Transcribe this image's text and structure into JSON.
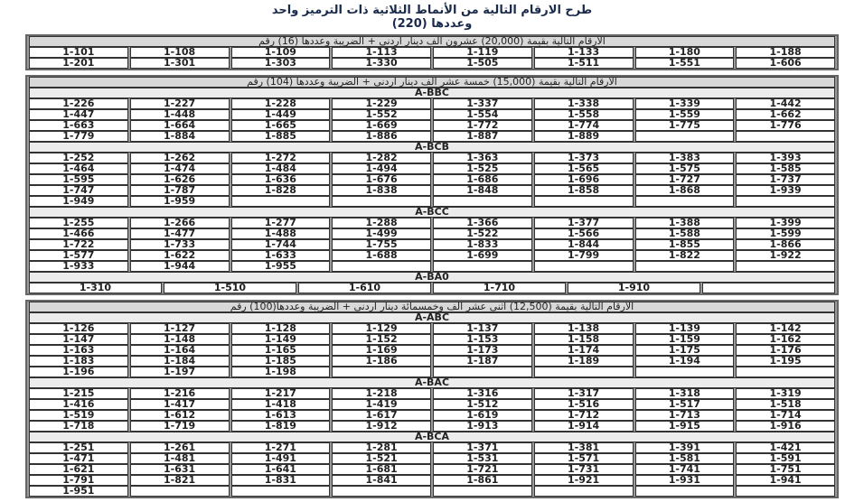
{
  "title": {
    "line1": "طرح الارقام التالية من الأنماط الثلاثية ذات الترميز واحد",
    "line2": "وعددها (220)"
  },
  "tables": [
    {
      "header": "الارقام التالية بقيمة  (20,000) عشرون الف دينار اردني + الضريبة وعددها (16) رقم",
      "sections": [
        {
          "label": "",
          "rows": [
            [
              "1-101",
              "1-108",
              "1-109",
              "1-113",
              "1-119",
              "1-133",
              "1-180",
              "1-188"
            ],
            [
              "1-201",
              "1-301",
              "1-303",
              "1-330",
              "1-505",
              "1-511",
              "1-551",
              "1-606"
            ]
          ]
        }
      ]
    },
    {
      "header": "الارقام التالية بقيمة  (15,000) خمسة عشر الف دينار اردني + الضريبة وعددها (104) رقم",
      "sections": [
        {
          "label": "A-BBC",
          "rows": [
            [
              "1-226",
              "1-227",
              "1-228",
              "1-229",
              "1-337",
              "1-338",
              "1-339",
              "1-442"
            ],
            [
              "1-447",
              "1-448",
              "1-449",
              "1-552",
              "1-554",
              "1-558",
              "1-559",
              "1-662"
            ],
            [
              "1-663",
              "1-664",
              "1-665",
              "1-669",
              "1-772",
              "1-774",
              "1-775",
              "1-776"
            ],
            [
              "1-779",
              "1-884",
              "1-885",
              "1-886",
              "1-887",
              "1-889",
              "",
              ""
            ]
          ]
        },
        {
          "label": "A-BCB",
          "rows": [
            [
              "1-252",
              "1-262",
              "1-272",
              "1-282",
              "1-363",
              "1-373",
              "1-383",
              "1-393"
            ],
            [
              "1-464",
              "1-474",
              "1-484",
              "1-494",
              "1-525",
              "1-565",
              "1-575",
              "1-585"
            ],
            [
              "1-595",
              "1-626",
              "1-636",
              "1-676",
              "1-686",
              "1-696",
              "1-727",
              "1-737"
            ],
            [
              "1-747",
              "1-787",
              "1-828",
              "1-838",
              "1-848",
              "1-858",
              "1-868",
              "1-939"
            ],
            [
              "1-949",
              "1-959",
              "",
              "",
              "",
              "",
              "",
              ""
            ]
          ]
        },
        {
          "label": "A-BCC",
          "rows": [
            [
              "1-255",
              "1-266",
              "1-277",
              "1-288",
              "1-366",
              "1-377",
              "1-388",
              "1-399"
            ],
            [
              "1-466",
              "1-477",
              "1-488",
              "1-499",
              "1-522",
              "1-566",
              "1-588",
              "1-599"
            ],
            [
              "1-722",
              "1-733",
              "1-744",
              "1-755",
              "1-833",
              "1-844",
              "1-855",
              "1-866"
            ],
            [
              "1-577",
              "1-622",
              "1-633",
              "1-688",
              "1-699",
              "1-799",
              "1-822",
              "1-922"
            ],
            [
              "1-933",
              "1-944",
              "1-955",
              "",
              "",
              "",
              "",
              ""
            ]
          ]
        },
        {
          "label": "A-BA0",
          "rows": [
            [
              "1-310",
              "1-510",
              "1-610",
              "1-710",
              "1-910",
              ""
            ]
          ]
        }
      ]
    },
    {
      "header": "الارقام التالية بقيمة  (12,500) اثنى عشر الف وخمسمائة دينار اردني + الضريبة  وعددها(100) رقم",
      "sections": [
        {
          "label": "A-ABC",
          "rows": [
            [
              "1-126",
              "1-127",
              "1-128",
              "1-129",
              "1-137",
              "1-138",
              "1-139",
              "1-142"
            ],
            [
              "1-147",
              "1-148",
              "1-149",
              "1-152",
              "1-153",
              "1-158",
              "1-159",
              "1-162"
            ],
            [
              "1-163",
              "1-164",
              "1-165",
              "1-169",
              "1-173",
              "1-174",
              "1-175",
              "1-176"
            ],
            [
              "1-183",
              "1-184",
              "1-185",
              "1-186",
              "1-187",
              "1-189",
              "1-194",
              "1-195"
            ],
            [
              "1-196",
              "1-197",
              "1-198",
              "",
              "",
              "",
              "",
              ""
            ]
          ]
        },
        {
          "label": "A-BAC",
          "rows": [
            [
              "1-215",
              "1-216",
              "1-217",
              "1-218",
              "1-316",
              "1-317",
              "1-318",
              "1-319"
            ],
            [
              "1-416",
              "1-417",
              "1-418",
              "1-419",
              "1-512",
              "1-516",
              "1-517",
              "1-518"
            ],
            [
              "1-519",
              "1-612",
              "1-613",
              "1-617",
              "1-619",
              "1-712",
              "1-713",
              "1-714"
            ],
            [
              "1-718",
              "1-719",
              "1-819",
              "1-912",
              "1-913",
              "1-914",
              "1-915",
              "1-916"
            ]
          ]
        },
        {
          "label": "A-BCA",
          "rows": [
            [
              "1-251",
              "1-261",
              "1-271",
              "1-281",
              "1-371",
              "1-381",
              "1-391",
              "1-421"
            ],
            [
              "1-471",
              "1-481",
              "1-491",
              "1-521",
              "1-531",
              "1-571",
              "1-581",
              "1-591"
            ],
            [
              "1-621",
              "1-631",
              "1-641",
              "1-681",
              "1-721",
              "1-731",
              "1-741",
              "1-751"
            ],
            [
              "1-791",
              "1-821",
              "1-831",
              "1-841",
              "1-861",
              "1-921",
              "1-931",
              "1-941"
            ],
            [
              "1-951",
              "",
              "",
              "",
              "",
              "",
              "",
              ""
            ]
          ]
        }
      ]
    }
  ]
}
